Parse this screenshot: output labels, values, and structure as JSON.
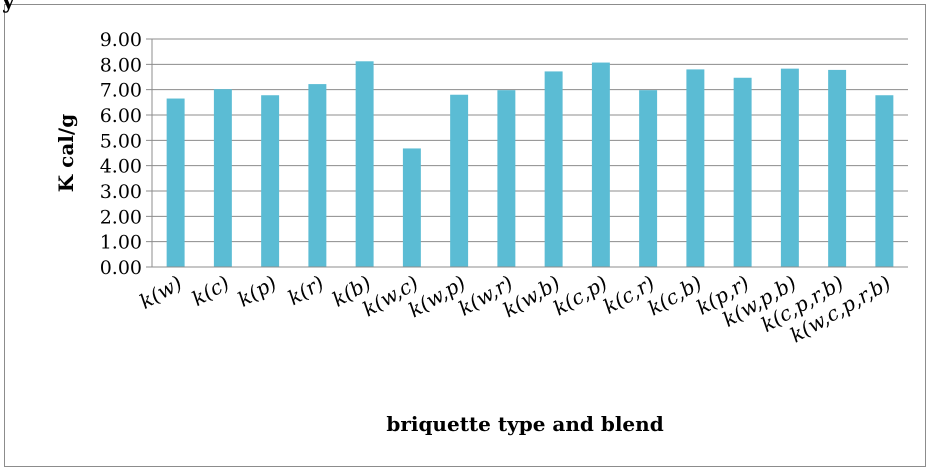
{
  "corner_fragment": "y",
  "chart_data": {
    "type": "bar",
    "title": "",
    "xlabel": "briquette type and blend",
    "ylabel": "K cal/g",
    "ylim": [
      0,
      9
    ],
    "yticks": [
      "0.00",
      "1.00",
      "2.00",
      "3.00",
      "4.00",
      "5.00",
      "6.00",
      "7.00",
      "8.00",
      "9.00"
    ],
    "grid": true,
    "legend": "none",
    "bar_color": "#5bbcd4",
    "categories": [
      "k(w)",
      "k(c)",
      "k(p)",
      "k(r)",
      "k(b)",
      "k(w,c)",
      "k(w,p)",
      "k(w,r)",
      "k(w,b)",
      "k(c,p)",
      "k(c,r)",
      "k(c,b)",
      "k(p,r)",
      "k(w,p,b)",
      "k(c,p,r,b)",
      "k(w,c,p,r,b)"
    ],
    "values": [
      6.65,
      7.02,
      6.78,
      7.22,
      8.12,
      4.68,
      6.8,
      6.98,
      7.72,
      8.07,
      6.98,
      7.8,
      7.47,
      7.83,
      7.78,
      6.78
    ]
  }
}
